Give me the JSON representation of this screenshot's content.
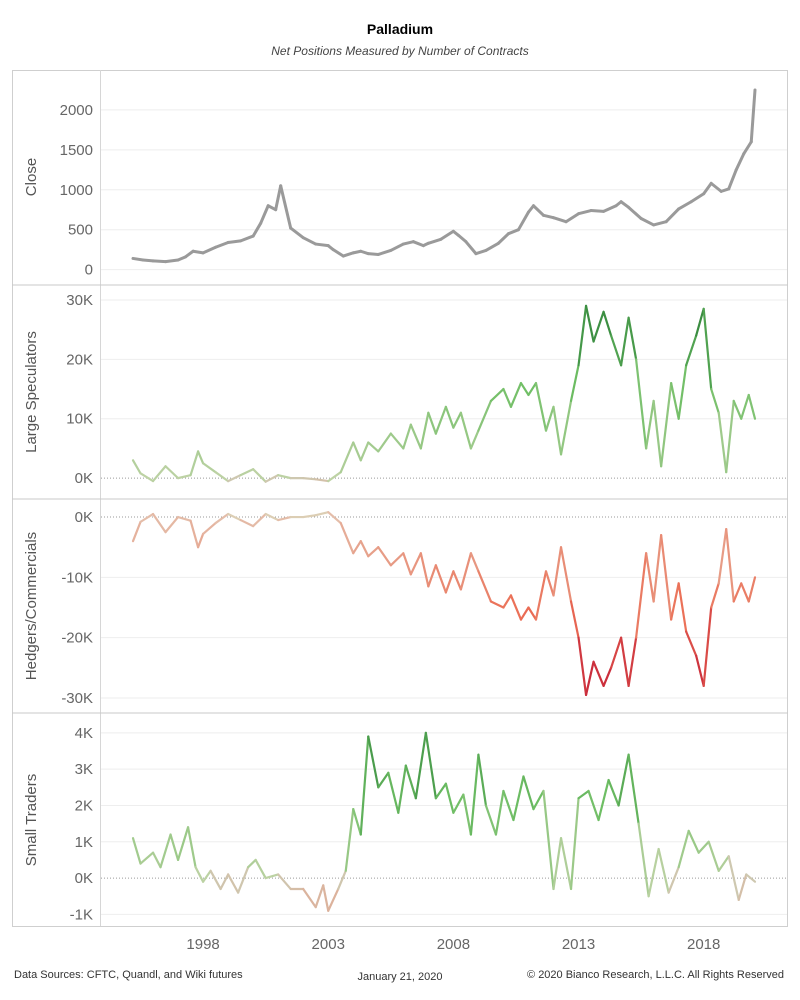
{
  "title": "Palladium",
  "subtitle": "Net Positions Measured by Number of Contracts",
  "footer": {
    "sources": "Data Sources: CFTC, Quandl, and Wiki futures",
    "date": "January 21, 2020",
    "copyright": "© 2020 Bianco Research, L.L.C. All Rights Reserved"
  },
  "chart_data": {
    "type": "line",
    "x_axis": {
      "ticks": [
        "1998",
        "2003",
        "2008",
        "2013",
        "2018"
      ]
    },
    "panels": [
      {
        "id": "close",
        "ylabel": "Close",
        "ticks": [
          {
            "v": 0,
            "label": "0"
          },
          {
            "v": 500,
            "label": "500"
          },
          {
            "v": 1000,
            "label": "1000"
          },
          {
            "v": 1500,
            "label": "1500"
          },
          {
            "v": 2000,
            "label": "2000"
          }
        ],
        "ylim": [
          -80,
          2400
        ],
        "color_mode": "solid",
        "color": "#9a9a9a",
        "series": [
          {
            "x": [
              1995.2,
              1995.6,
              1996.0,
              1996.5,
              1997.0,
              1997.3,
              1997.6,
              1998.0,
              1998.5,
              1999.0,
              1999.5,
              2000.0,
              2000.3,
              2000.6,
              2000.9,
              2001.1,
              2001.5,
              2002.0,
              2002.5,
              2003.0,
              2003.2,
              2003.6,
              2004.0,
              2004.3,
              2004.6,
              2005.0,
              2005.5,
              2006.0,
              2006.4,
              2006.8,
              2007.0,
              2007.5,
              2008.0,
              2008.2,
              2008.5,
              2008.9,
              2009.3,
              2009.8,
              2010.2,
              2010.6,
              2011.0,
              2011.2,
              2011.6,
              2012.0,
              2012.5,
              2013.0,
              2013.5,
              2014.0,
              2014.5,
              2014.7,
              2015.0,
              2015.5,
              2016.0,
              2016.5,
              2017.0,
              2017.5,
              2018.0,
              2018.3,
              2018.7,
              2019.0,
              2019.3,
              2019.6,
              2019.9,
              2020.05
            ],
            "y": [
              140,
              120,
              110,
              100,
              120,
              160,
              230,
              210,
              280,
              340,
              360,
              420,
              580,
              800,
              750,
              1050,
              520,
              400,
              320,
              300,
              250,
              170,
              210,
              230,
              200,
              190,
              240,
              320,
              350,
              300,
              330,
              380,
              480,
              430,
              350,
              200,
              240,
              330,
              450,
              500,
              720,
              800,
              680,
              650,
              600,
              700,
              740,
              730,
              800,
              850,
              780,
              640,
              560,
              600,
              760,
              850,
              950,
              1080,
              980,
              1010,
              1250,
              1450,
              1600,
              2250
            ]
          }
        ]
      },
      {
        "id": "large_speculators",
        "ylabel": "Large Speculators",
        "ticks": [
          {
            "v": 0,
            "label": "0K"
          },
          {
            "v": 10000,
            "label": "10K"
          },
          {
            "v": 20000,
            "label": "20K"
          },
          {
            "v": 30000,
            "label": "30K"
          }
        ],
        "ylim": [
          -2000,
          31000
        ],
        "color_mode": "green",
        "zero_line": true,
        "series": [
          {
            "x": [
              1995.2,
              1995.5,
              1996.0,
              1996.5,
              1997.0,
              1997.5,
              1997.8,
              1998.0,
              1998.5,
              1999.0,
              1999.5,
              2000.0,
              2000.5,
              2001.0,
              2001.5,
              2002.0,
              2002.5,
              2003.0,
              2003.5,
              2004.0,
              2004.3,
              2004.6,
              2005.0,
              2005.5,
              2006.0,
              2006.3,
              2006.7,
              2007.0,
              2007.3,
              2007.7,
              2008.0,
              2008.3,
              2008.7,
              2009.0,
              2009.5,
              2010.0,
              2010.3,
              2010.7,
              2011.0,
              2011.3,
              2011.7,
              2012.0,
              2012.3,
              2012.7,
              2013.0,
              2013.3,
              2013.6,
              2014.0,
              2014.3,
              2014.7,
              2015.0,
              2015.3,
              2015.7,
              2016.0,
              2016.3,
              2016.7,
              2017.0,
              2017.3,
              2017.7,
              2018.0,
              2018.3,
              2018.6,
              2018.9,
              2019.2,
              2019.5,
              2019.8,
              2020.05
            ],
            "y": [
              3000,
              800,
              -500,
              2000,
              0,
              500,
              4500,
              2500,
              1000,
              -500,
              500,
              1500,
              -600,
              500,
              0,
              0,
              -200,
              -500,
              1000,
              6000,
              3000,
              6000,
              4500,
              7500,
              5000,
              9000,
              5000,
              11000,
              7500,
              12000,
              8500,
              11000,
              5000,
              8000,
              13000,
              15000,
              12000,
              16000,
              14000,
              16000,
              8000,
              12000,
              4000,
              13000,
              19000,
              29000,
              23000,
              28000,
              24000,
              19000,
              27000,
              20000,
              5000,
              13000,
              2000,
              16000,
              10000,
              19000,
              24000,
              28500,
              15000,
              11000,
              1000,
              13000,
              10000,
              14000,
              10000
            ]
          }
        ]
      },
      {
        "id": "hedgers_commercials",
        "ylabel": "Hedgers/Commercials",
        "ticks": [
          {
            "v": 0,
            "label": "0K"
          },
          {
            "v": -10000,
            "label": "-10K"
          },
          {
            "v": -20000,
            "label": "-20K"
          },
          {
            "v": -30000,
            "label": "-30K"
          }
        ],
        "ylim": [
          -31000,
          1500
        ],
        "color_mode": "red",
        "zero_line": true,
        "series": [
          {
            "x": [
              1995.2,
              1995.5,
              1996.0,
              1996.5,
              1997.0,
              1997.5,
              1997.8,
              1998.0,
              1998.5,
              1999.0,
              1999.5,
              2000.0,
              2000.5,
              2001.0,
              2001.5,
              2002.0,
              2002.5,
              2003.0,
              2003.5,
              2004.0,
              2004.3,
              2004.6,
              2005.0,
              2005.5,
              2006.0,
              2006.3,
              2006.7,
              2007.0,
              2007.3,
              2007.7,
              2008.0,
              2008.3,
              2008.7,
              2009.0,
              2009.5,
              2010.0,
              2010.3,
              2010.7,
              2011.0,
              2011.3,
              2011.7,
              2012.0,
              2012.3,
              2012.7,
              2013.0,
              2013.3,
              2013.6,
              2014.0,
              2014.3,
              2014.7,
              2015.0,
              2015.3,
              2015.7,
              2016.0,
              2016.3,
              2016.7,
              2017.0,
              2017.3,
              2017.7,
              2018.0,
              2018.3,
              2018.6,
              2018.9,
              2019.2,
              2019.5,
              2019.8,
              2020.05
            ],
            "y": [
              -4000,
              -800,
              500,
              -2500,
              0,
              -600,
              -5000,
              -2800,
              -1000,
              500,
              -500,
              -1500,
              500,
              -500,
              0,
              0,
              300,
              800,
              -1000,
              -6000,
              -4000,
              -6500,
              -5000,
              -8000,
              -6000,
              -9500,
              -6000,
              -11500,
              -8000,
              -12500,
              -9000,
              -12000,
              -6000,
              -9000,
              -14000,
              -15000,
              -13000,
              -17000,
              -15000,
              -17000,
              -9000,
              -13000,
              -5000,
              -14000,
              -20000,
              -29500,
              -24000,
              -28000,
              -25000,
              -20000,
              -28000,
              -20000,
              -6000,
              -14000,
              -3000,
              -17000,
              -11000,
              -19000,
              -23000,
              -28000,
              -15000,
              -11000,
              -2000,
              -14000,
              -11000,
              -14000,
              -10000
            ]
          }
        ]
      },
      {
        "id": "small_traders",
        "ylabel": "Small Traders",
        "ticks": [
          {
            "v": -1000,
            "label": "-1K"
          },
          {
            "v": 0,
            "label": "0K"
          },
          {
            "v": 1000,
            "label": "1K"
          },
          {
            "v": 2000,
            "label": "2K"
          },
          {
            "v": 3000,
            "label": "3K"
          },
          {
            "v": 4000,
            "label": "4K"
          }
        ],
        "ylim": [
          -1100,
          4300
        ],
        "color_mode": "green",
        "zero_line": true,
        "series": [
          {
            "x": [
              1995.2,
              1995.5,
              1996.0,
              1996.3,
              1996.7,
              1997.0,
              1997.4,
              1997.7,
              1998.0,
              1998.3,
              1998.7,
              1999.0,
              1999.4,
              1999.8,
              2000.1,
              2000.5,
              2001.0,
              2001.5,
              2002.0,
              2002.5,
              2002.8,
              2003.0,
              2003.4,
              2003.7,
              2004.0,
              2004.3,
              2004.6,
              2005.0,
              2005.4,
              2005.8,
              2006.1,
              2006.5,
              2006.9,
              2007.3,
              2007.7,
              2008.0,
              2008.4,
              2008.7,
              2009.0,
              2009.3,
              2009.7,
              2010.0,
              2010.4,
              2010.8,
              2011.2,
              2011.6,
              2012.0,
              2012.3,
              2012.7,
              2013.0,
              2013.4,
              2013.8,
              2014.2,
              2014.6,
              2015.0,
              2015.4,
              2015.8,
              2016.2,
              2016.6,
              2017.0,
              2017.4,
              2017.8,
              2018.2,
              2018.6,
              2019.0,
              2019.4,
              2019.7,
              2020.05
            ],
            "y": [
              1100,
              400,
              700,
              300,
              1200,
              500,
              1400,
              300,
              -100,
              200,
              -300,
              100,
              -400,
              300,
              500,
              0,
              100,
              -300,
              -300,
              -800,
              -200,
              -900,
              -300,
              200,
              1900,
              1200,
              3900,
              2500,
              2900,
              1800,
              3100,
              2200,
              4000,
              2200,
              2600,
              1800,
              2300,
              1200,
              3400,
              2000,
              1200,
              2400,
              1600,
              2800,
              1900,
              2400,
              -300,
              1100,
              -300,
              2200,
              2400,
              1600,
              2700,
              2000,
              3400,
              1500,
              -500,
              800,
              -400,
              300,
              1300,
              700,
              1000,
              200,
              600,
              -600,
              100,
              -100
            ]
          }
        ]
      }
    ]
  }
}
